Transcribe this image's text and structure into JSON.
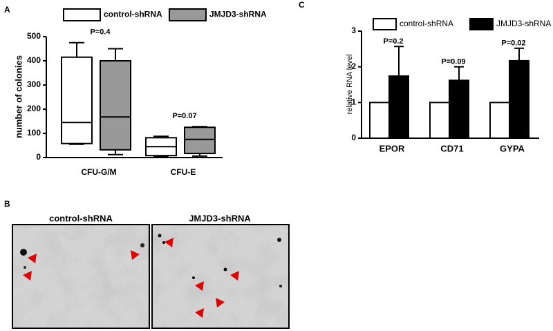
{
  "chart_data": [
    {
      "type": "box",
      "panel_label": "A",
      "y_label": "number of colonies",
      "categories": [
        "CFU-G/M",
        "CFU-E"
      ],
      "annotations": [
        "P=0.4",
        "P=0.07"
      ],
      "ylim": [
        0,
        500
      ],
      "yticks": [
        0,
        100,
        200,
        300,
        400,
        500
      ],
      "series": [
        {
          "name": "control-shRNA",
          "color": "#ffffff",
          "min": [
            55,
            3
          ],
          "q1": [
            58,
            8
          ],
          "median": [
            145,
            45
          ],
          "q3": [
            415,
            82
          ],
          "max": [
            475,
            88
          ]
        },
        {
          "name": "JMJD3-shRNA",
          "color": "#999999",
          "min": [
            12,
            6
          ],
          "q1": [
            32,
            17
          ],
          "median": [
            168,
            75
          ],
          "q3": [
            400,
            125
          ],
          "max": [
            450,
            128
          ]
        }
      ]
    },
    {
      "type": "bar",
      "panel_label": "C",
      "y_label": "relative RNA level",
      "categories": [
        "EPOR",
        "CD71",
        "GYPA"
      ],
      "annotations": [
        "P=0.2",
        "P=0.09",
        "P=0.02"
      ],
      "ylim": [
        0,
        3
      ],
      "yticks": [
        0,
        1,
        2,
        3
      ],
      "series": [
        {
          "name": "control-shRNA",
          "color": "#ffffff",
          "values": [
            1,
            1,
            1
          ]
        },
        {
          "name": "JMJD3-shRNA",
          "color": "#000000",
          "values": [
            1.74,
            1.62,
            2.17
          ],
          "errors": [
            0.83,
            0.38,
            0.35
          ]
        }
      ]
    }
  ],
  "images": {
    "panel_label": "B",
    "titles": [
      "control-shRNA",
      "JMJD3-shRNA"
    ]
  }
}
